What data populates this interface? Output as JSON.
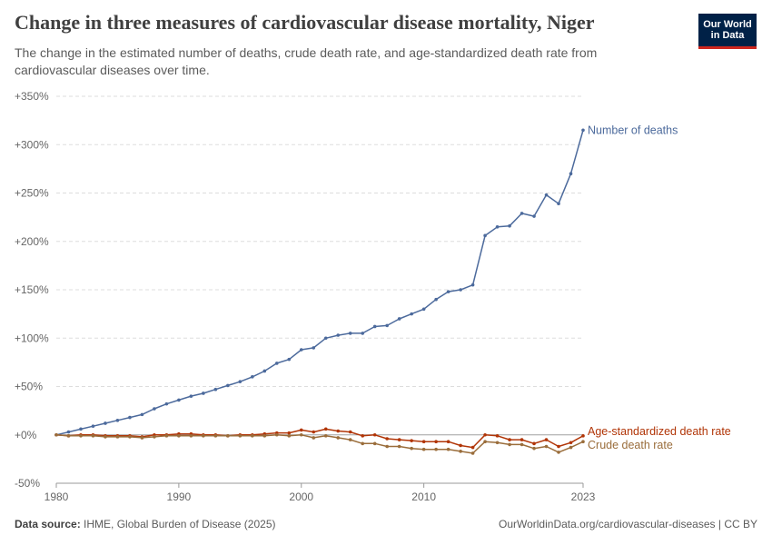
{
  "header": {
    "title": "Change in three measures of cardiovascular disease mortality, Niger",
    "subtitle": "The change in the estimated number of deaths, crude death rate, and age-standardized death rate from cardiovascular diseases over time.",
    "logo_line1": "Our World",
    "logo_line2": "in Data"
  },
  "footer": {
    "source_label": "Data source:",
    "source_text": "IHME, Global Burden of Disease (2025)",
    "url_text": "OurWorldinData.org/cardiovascular-diseases | CC BY"
  },
  "colors": {
    "deaths": "#4c6a9c",
    "age_standardized": "#b13507",
    "crude": "#9a6d3b",
    "grid": "#dddddd",
    "zero": "#a0a0a0"
  },
  "chart_data": {
    "type": "line",
    "title": "Change in three measures of cardiovascular disease mortality, Niger",
    "x_ticks": [
      "1980",
      "1990",
      "2000",
      "2010",
      "2023"
    ],
    "y_ticks": [
      "+350%",
      "+300%",
      "+250%",
      "+200%",
      "+150%",
      "+100%",
      "+50%",
      "+0%",
      "-50%"
    ],
    "y_tick_values": [
      350,
      300,
      250,
      200,
      150,
      100,
      50,
      0,
      -50
    ],
    "xlim": [
      1980,
      2023
    ],
    "ylim": [
      -50,
      350
    ],
    "grid": true,
    "legend": "right-end-labels",
    "x": [
      1980,
      1981,
      1982,
      1983,
      1984,
      1985,
      1986,
      1987,
      1988,
      1989,
      1990,
      1991,
      1992,
      1993,
      1994,
      1995,
      1996,
      1997,
      1998,
      1999,
      2000,
      2001,
      2002,
      2003,
      2004,
      2005,
      2006,
      2007,
      2008,
      2009,
      2010,
      2011,
      2012,
      2013,
      2014,
      2015,
      2016,
      2017,
      2018,
      2019,
      2020,
      2021,
      2022,
      2023
    ],
    "series": [
      {
        "name": "Number of deaths",
        "color": "#4c6a9c",
        "values": [
          0,
          3,
          6,
          9,
          12,
          15,
          18,
          21,
          27,
          32,
          36,
          40,
          43,
          47,
          51,
          55,
          60,
          66,
          74,
          78,
          88,
          90,
          100,
          103,
          105,
          105,
          112,
          113,
          120,
          125,
          130,
          140,
          148,
          150,
          155,
          206,
          215,
          216,
          229,
          226,
          248,
          239,
          270,
          315
        ]
      },
      {
        "name": "Age-standardized death rate",
        "color": "#b13507",
        "values": [
          0,
          -1,
          0,
          0,
          -1,
          -1,
          -1,
          -2,
          0,
          0,
          1,
          1,
          0,
          0,
          -1,
          0,
          0,
          1,
          2,
          2,
          5,
          3,
          6,
          4,
          3,
          -1,
          0,
          -4,
          -5,
          -6,
          -7,
          -7,
          -7,
          -11,
          -13,
          0,
          -1,
          -5,
          -5,
          -9,
          -5,
          -12,
          -8,
          -1
        ]
      },
      {
        "name": "Crude death rate",
        "color": "#9a6d3b",
        "values": [
          0,
          -1,
          -1,
          -1,
          -2,
          -2,
          -2,
          -3,
          -2,
          -1,
          -1,
          -1,
          -1,
          -1,
          -1,
          -1,
          -1,
          -1,
          0,
          -1,
          0,
          -3,
          -1,
          -3,
          -5,
          -9,
          -9,
          -12,
          -12,
          -14,
          -15,
          -15,
          -15,
          -17,
          -19,
          -7,
          -8,
          -10,
          -10,
          -14,
          -12,
          -18,
          -13,
          -7
        ]
      }
    ]
  }
}
